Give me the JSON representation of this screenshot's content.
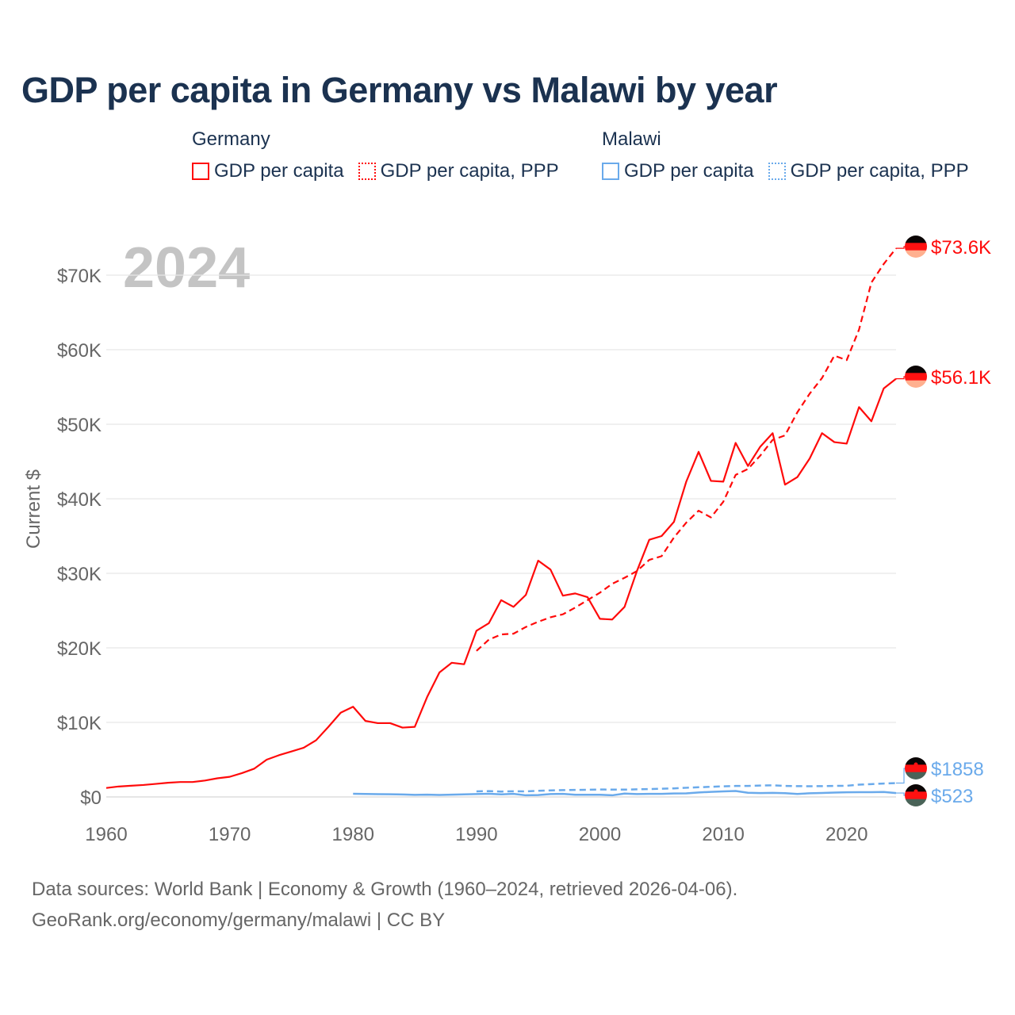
{
  "colors": {
    "germany": "#ff0a0a",
    "malawi": "#6aaaeb",
    "grid": "#e6e6e6",
    "axis_text": "#666666",
    "year_watermark": "#c4c4c4"
  },
  "legend": {
    "groups": [
      {
        "name": "Germany",
        "items": [
          "GDP per capita",
          "GDP per capita, PPP"
        ]
      },
      {
        "name": "Malawi",
        "items": [
          "GDP per capita",
          "GDP per capita, PPP"
        ]
      }
    ]
  },
  "footer": {
    "line1": "Data sources: World Bank | Economy & Growth (1960–2024, retrieved 2026-04-06).",
    "line2": "GeoRank.org/economy/germany/malawi | CC BY"
  },
  "chart_data": {
    "type": "line",
    "title": "GDP per capita in Germany vs Malawi by year",
    "ylabel": "Current $",
    "xlabel": "",
    "year_label": "2024",
    "xlim": [
      1960,
      2024
    ],
    "ylim": [
      0,
      75000
    ],
    "x_ticks": [
      1960,
      1970,
      1980,
      1990,
      2000,
      2010,
      2020
    ],
    "y_ticks": [
      0,
      10000,
      20000,
      30000,
      40000,
      50000,
      60000,
      70000
    ],
    "y_tick_labels": [
      "$0",
      "$10K",
      "$20K",
      "$30K",
      "$40K",
      "$50K",
      "$60K",
      "$70K"
    ],
    "grid": true,
    "legend_position": "top",
    "series": [
      {
        "name": "Germany GDP per capita",
        "country": "germany",
        "dashed": false,
        "start": 1960,
        "end_label": "$56.1K",
        "values": [
          1200,
          1400,
          1500,
          1600,
          1750,
          1900,
          2000,
          2000,
          2200,
          2500,
          2700,
          3200,
          3800,
          5000,
          5600,
          6100,
          6600,
          7600,
          9400,
          11300,
          12100,
          10200,
          9900,
          9900,
          9300,
          9400,
          13400,
          16700,
          18000,
          17800,
          22300,
          23300,
          26400,
          25500,
          27100,
          31700,
          30500,
          27000,
          27300,
          26800,
          23900,
          23800,
          25500,
          30300,
          34500,
          35000,
          36900,
          42300,
          46300,
          42400,
          42300,
          47500,
          44400,
          47000,
          48800,
          41900,
          42900,
          45400,
          48800,
          47600,
          47400,
          52300,
          50400,
          54800,
          56100
        ]
      },
      {
        "name": "Germany GDP per capita, PPP",
        "country": "germany",
        "dashed": true,
        "start": 1990,
        "end_label": "$73.6K",
        "values": [
          19600,
          21100,
          21800,
          21900,
          22800,
          23500,
          24100,
          24500,
          25400,
          26400,
          27400,
          28600,
          29400,
          30300,
          31800,
          32300,
          34800,
          36800,
          38400,
          37500,
          39600,
          43200,
          44000,
          45800,
          47900,
          48500,
          51600,
          54100,
          56200,
          59200,
          58600,
          62700,
          69000,
          71500,
          73600
        ]
      },
      {
        "name": "Malawi GDP per capita",
        "country": "malawi",
        "dashed": false,
        "start": 1980,
        "end_label": "$523",
        "values": [
          430,
          400,
          370,
          360,
          330,
          280,
          300,
          260,
          300,
          340,
          390,
          420,
          340,
          410,
          220,
          250,
          380,
          410,
          290,
          290,
          290,
          220,
          450,
          390,
          410,
          410,
          470,
          480,
          600,
          680,
          750,
          800,
          560,
          520,
          550,
          510,
          400,
          490,
          530,
          580,
          630,
          640,
          640,
          670,
          523
        ]
      },
      {
        "name": "Malawi GDP per capita, PPP",
        "country": "malawi",
        "dashed": true,
        "start": 1990,
        "end_label": "$1858",
        "values": [
          750,
          780,
          720,
          760,
          740,
          820,
          880,
          920,
          940,
          960,
          1000,
          980,
          980,
          1020,
          1060,
          1100,
          1150,
          1230,
          1300,
          1360,
          1420,
          1470,
          1480,
          1530,
          1560,
          1480,
          1450,
          1440,
          1450,
          1480,
          1500,
          1650,
          1720,
          1800,
          1858
        ]
      }
    ]
  }
}
